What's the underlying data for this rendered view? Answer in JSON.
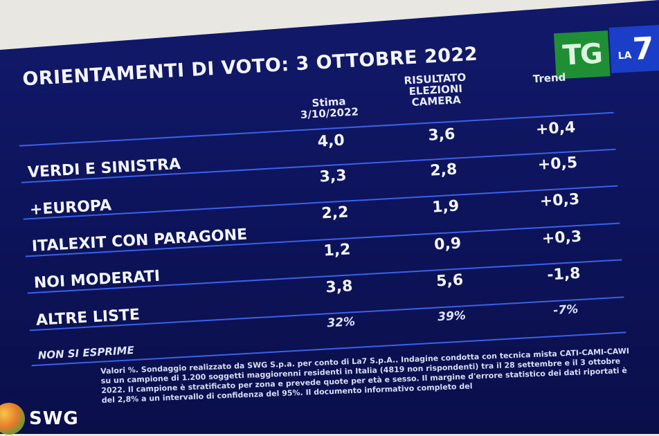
{
  "title": "ORIENTAMENTI DI VOTO: 3 OTTOBRE 2022",
  "logo": {
    "tg": "TG",
    "la": "LA",
    "seven": "7"
  },
  "columns": {
    "estimate": "Stima\n3/10/2022",
    "result": "RISULTATO\nELEZIONI\nCAMERA",
    "trend": "Trend"
  },
  "rows": [
    {
      "party": "VERDI E SINISTRA",
      "estimate": "4,0",
      "result": "3,6",
      "trend": "+0,4"
    },
    {
      "party": "+EUROPA",
      "estimate": "3,3",
      "result": "2,8",
      "trend": "+0,5"
    },
    {
      "party": "ITALEXIT CON PARAGONE",
      "estimate": "2,2",
      "result": "1,9",
      "trend": "+0,3"
    },
    {
      "party": "NOI MODERATI",
      "estimate": "1,2",
      "result": "0,9",
      "trend": "+0,3"
    },
    {
      "party": "ALTRE LISTE",
      "estimate": "3,8",
      "result": "5,6",
      "trend": "-1,8"
    }
  ],
  "no_opinion": {
    "label": "NON SI ESPRIME",
    "estimate": "32%",
    "result": "39%",
    "trend": "-7%"
  },
  "footnote": "Valori %. Sondaggio realizzato da SWG S.p.a. per conto di La7 S.p.A.. Indagine condotta con tecnica mista CATI-CAMI-CAWI su un campione di 1.200 soggetti maggiorenni residenti in Italia (4819 non rispondenti) tra il 28 settembre e il 3 ottobre 2022. Il campione è stratificato per zona e prevede quote per età e sesso. Il margine d'errore statistico dei dati riportati è del 2,8% a un intervallo di confidenza del 95%. Il documento informativo completo del",
  "brand": "SWG"
}
